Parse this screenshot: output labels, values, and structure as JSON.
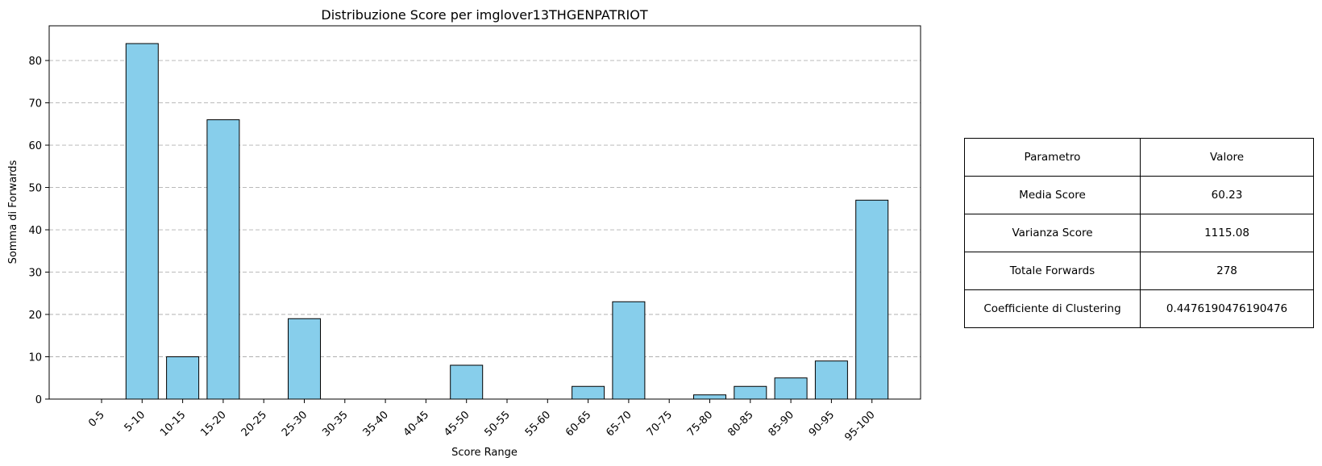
{
  "chart_data": {
    "type": "bar",
    "title": "Distribuzione Score per imglover13THGENPATRIOT",
    "xlabel": "Score Range",
    "ylabel": "Somma di Forwards",
    "categories": [
      "0-5",
      "5-10",
      "10-15",
      "15-20",
      "20-25",
      "25-30",
      "30-35",
      "35-40",
      "40-45",
      "45-50",
      "50-55",
      "55-60",
      "60-65",
      "65-70",
      "70-75",
      "75-80",
      "80-85",
      "85-90",
      "90-95",
      "95-100"
    ],
    "values": [
      0,
      84,
      10,
      66,
      0,
      19,
      0,
      0,
      0,
      8,
      0,
      0,
      3,
      23,
      0,
      1,
      3,
      5,
      9,
      47
    ],
    "ylim": [
      0,
      88.2
    ],
    "yticks": [
      0,
      10,
      20,
      30,
      40,
      50,
      60,
      70,
      80
    ],
    "grid": "y-dashed",
    "bar_color": "#87ceeb",
    "edge_color": "#000000"
  },
  "table": {
    "header": [
      "Parametro",
      "Valore"
    ],
    "rows": [
      [
        "Media Score",
        "60.23"
      ],
      [
        "Varianza Score",
        "1115.08"
      ],
      [
        "Totale Forwards",
        "278"
      ],
      [
        "Coefficiente di Clustering",
        "0.4476190476190476"
      ]
    ]
  }
}
